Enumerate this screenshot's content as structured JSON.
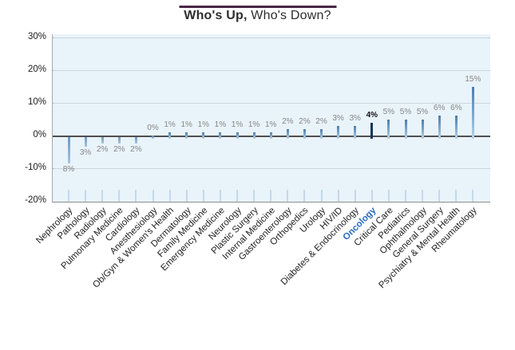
{
  "header": {
    "title_bold": "Who's Up,",
    "title_regular": " Who's Down?",
    "accent_line_color": "#4a2647"
  },
  "chart_data": {
    "type": "bar",
    "title": "Who's Up, Who's Down?",
    "categories": [
      "Nephrology",
      "Pathology",
      "Radiology",
      "Pulmonary Medicine",
      "Cardiology",
      "Anesthesiology",
      "Ob/Gyn & Women's Health",
      "Dermatology",
      "Family Medicine",
      "Emergency Medicine",
      "Neurology",
      "Plastic Surgery",
      "Internal Medicine",
      "Gastroenterology",
      "Orthopedics",
      "Urology",
      "HIV/ID",
      "Diabetes & Endocrinology",
      "Oncology",
      "Critical Care",
      "Pediatrics",
      "Ophthalmology",
      "General Surgery",
      "Psychiatry & Mental Health",
      "Rheumatology"
    ],
    "values": [
      -8,
      -3,
      -2,
      -2,
      -2,
      0,
      1,
      1,
      1,
      1,
      1,
      1,
      1,
      2,
      2,
      2,
      3,
      3,
      4,
      5,
      5,
      5,
      6,
      6,
      15
    ],
    "value_labels": [
      "8%",
      "3%",
      "2%",
      "2%",
      "2%",
      "0%",
      "1%",
      "1%",
      "1%",
      "1%",
      "1%",
      "1%",
      "1%",
      "2%",
      "2%",
      "2%",
      "3%",
      "3%",
      "4%",
      "5%",
      "5%",
      "5%",
      "6%",
      "6%",
      "15%"
    ],
    "highlight": {
      "index": 18,
      "category": "Oncology",
      "bar_color": "#16355c",
      "value_label_color": "#111111",
      "category_label_color": "#2a6cbd"
    },
    "y_ticks": [
      {
        "value": 30,
        "label": "30%"
      },
      {
        "value": 20,
        "label": "20%"
      },
      {
        "value": 10,
        "label": "10%"
      },
      {
        "value": 0,
        "label": "0%"
      },
      {
        "value": -10,
        "label": "-10%"
      },
      {
        "value": -20,
        "label": "-20%"
      }
    ],
    "ylim": [
      -20,
      30
    ],
    "grid": "horizontal-dotted",
    "legend": "none",
    "colors": {
      "plot_bg": "#e9f3fa",
      "bar_gradient_top": "#4c7dab",
      "bar_gradient_bottom": "#b9d3e6",
      "value_label": "#878787",
      "zero_axis_line": "#4f4f4f",
      "bottom_tick": "#c3d9ea",
      "gridline": "#b2b9bf"
    }
  }
}
